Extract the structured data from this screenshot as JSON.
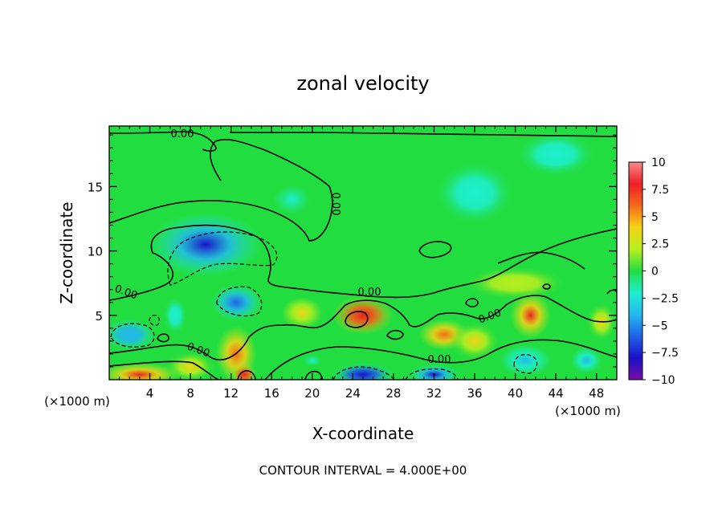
{
  "chart_data": {
    "type": "heatmap",
    "title": "zonal velocity",
    "xlabel": "X-coordinate",
    "ylabel": "Z-coordinate",
    "x_unit": "(×1000 m)",
    "x_unit_right": "(×1000 m)",
    "xlim": [
      0,
      50
    ],
    "ylim": [
      0,
      19.7
    ],
    "x_ticks": [
      4,
      8,
      12,
      16,
      20,
      24,
      28,
      32,
      36,
      40,
      44,
      48
    ],
    "y_ticks": [
      5,
      10,
      15
    ],
    "colorbar": {
      "min": -10,
      "max": 10,
      "ticks": [
        -10,
        -7.5,
        -5,
        -2.5,
        0,
        2.5,
        5,
        7.5,
        10
      ],
      "tick_labels": [
        "−10",
        "−7.5",
        "−5",
        "−2.5",
        "0",
        "2.5",
        "5",
        "7.5",
        "10"
      ],
      "colors": [
        "#7a0ca8",
        "#1a10c8",
        "#1f63e8",
        "#23b8ef",
        "#1eefd0",
        "#22dd3f",
        "#b8ef1f",
        "#f6d214",
        "#f6691a",
        "#ee1f24",
        "#f68a8c"
      ]
    },
    "contour_labels": [
      "0.00",
      "0.00",
      "0.00",
      "0.00",
      "0.00",
      "0.00",
      "0.00"
    ],
    "footer": "CONTOUR INTERVAL = 4.000E+00",
    "field_features": [
      {
        "x": 9.5,
        "z": 10.5,
        "value": -7.5,
        "sx": 5.5,
        "sz": 2.5
      },
      {
        "x": 12.5,
        "z": 6.0,
        "value": -7.0,
        "sx": 2.5,
        "sz": 1.4
      },
      {
        "x": 2.0,
        "z": 3.5,
        "value": -5.0,
        "sx": 2.5,
        "sz": 1.2
      },
      {
        "x": 6.5,
        "z": 5.0,
        "value": -3.0,
        "sx": 1.2,
        "sz": 1.5
      },
      {
        "x": 25.0,
        "z": 5.0,
        "value": 8.0,
        "sx": 3.0,
        "sz": 1.5
      },
      {
        "x": 33.0,
        "z": 3.5,
        "value": 6.0,
        "sx": 2.5,
        "sz": 1.2
      },
      {
        "x": 41.5,
        "z": 5.0,
        "value": 7.0,
        "sx": 2.0,
        "sz": 1.8
      },
      {
        "x": 19.0,
        "z": 5.2,
        "value": 4.5,
        "sx": 2.0,
        "sz": 1.2
      },
      {
        "x": 12.5,
        "z": 2.0,
        "value": 6.0,
        "sx": 2.0,
        "sz": 2.2
      },
      {
        "x": 13.3,
        "z": 0.4,
        "value": 8.5,
        "sx": 1.2,
        "sz": 0.8
      },
      {
        "x": 3.0,
        "z": 0.4,
        "value": 7.0,
        "sx": 4.0,
        "sz": 0.9
      },
      {
        "x": 8.0,
        "z": 1.0,
        "value": 3.0,
        "sx": 2.5,
        "sz": 1.2
      },
      {
        "x": 25.0,
        "z": 0.4,
        "value": -8.0,
        "sx": 3.0,
        "sz": 0.9
      },
      {
        "x": 32.0,
        "z": 0.4,
        "value": -7.5,
        "sx": 2.5,
        "sz": 0.8
      },
      {
        "x": 41.0,
        "z": 1.5,
        "value": -4.0,
        "sx": 2.5,
        "sz": 1.2
      },
      {
        "x": 47.0,
        "z": 1.5,
        "value": -4.0,
        "sx": 1.5,
        "sz": 1.0
      },
      {
        "x": 44.0,
        "z": 17.5,
        "value": -3.0,
        "sx": 4.0,
        "sz": 1.8
      },
      {
        "x": 36.0,
        "z": 14.5,
        "value": -2.0,
        "sx": 4.0,
        "sz": 2.5
      },
      {
        "x": 18.0,
        "z": 14.0,
        "value": -1.2,
        "sx": 4.0,
        "sz": 2.5
      },
      {
        "x": 40.0,
        "z": 7.5,
        "value": 1.8,
        "sx": 5.0,
        "sz": 1.3
      },
      {
        "x": 36.0,
        "z": 3.0,
        "value": 3.0,
        "sx": 2.5,
        "sz": 1.5
      },
      {
        "x": 20.0,
        "z": 1.5,
        "value": -1.5,
        "sx": 2.0,
        "sz": 1.0
      },
      {
        "x": 48.5,
        "z": 4.5,
        "value": 3.0,
        "sx": 1.5,
        "sz": 1.5
      }
    ]
  }
}
